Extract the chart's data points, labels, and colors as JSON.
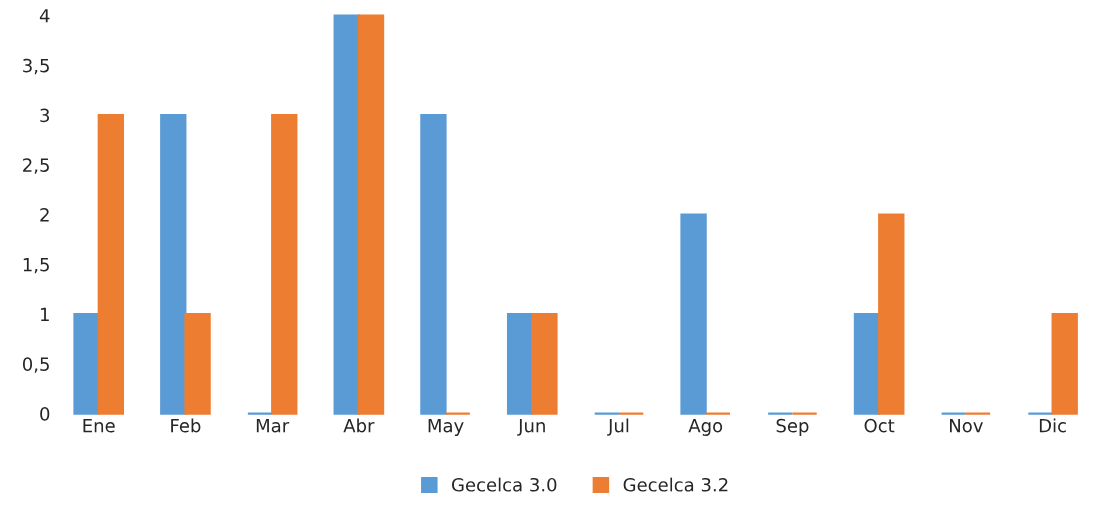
{
  "chart_data": {
    "type": "bar",
    "categories": [
      "Ene",
      "Feb",
      "Mar",
      "Abr",
      "May",
      "Jun",
      "Jul",
      "Ago",
      "Sep",
      "Oct",
      "Nov",
      "Dic"
    ],
    "series": [
      {
        "name": "Gecelca 3.0",
        "color": "#5b9bd5",
        "values": [
          1,
          3,
          0,
          4,
          3,
          1,
          0,
          2,
          0,
          1,
          0,
          0
        ]
      },
      {
        "name": "Gecelca 3.2",
        "color": "#ed7d31",
        "values": [
          3,
          1,
          3,
          4,
          0,
          1,
          0,
          0,
          0,
          2,
          0,
          1
        ]
      }
    ],
    "ylim": [
      0,
      4
    ],
    "yticks": [
      0,
      {
        "value": 0.5,
        "label": "0,5"
      },
      1,
      {
        "value": 1.5,
        "label": "1,5"
      },
      2,
      {
        "value": 2.5,
        "label": "2,5"
      },
      3,
      {
        "value": 3.5,
        "label": "3,5"
      },
      4
    ],
    "grid": false,
    "legend": "bottom"
  }
}
